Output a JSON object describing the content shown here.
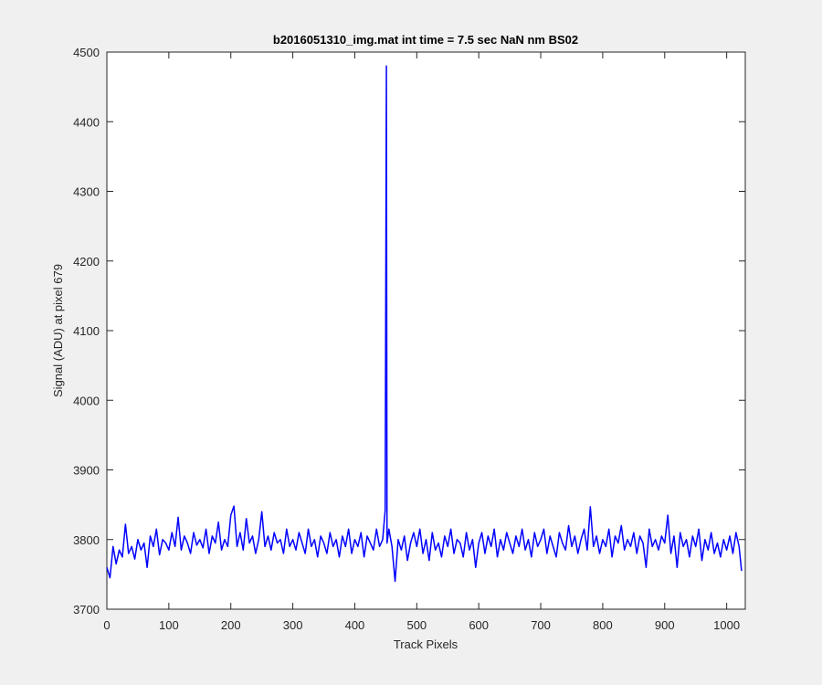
{
  "chart_data": {
    "type": "line",
    "title": "b2016051310_img.mat int time = 7.5 sec  NaN nm BS02",
    "xlabel": "Track Pixels",
    "ylabel": "Signal (ADU) at pixel 679",
    "xlim": [
      0,
      1030
    ],
    "xticks": [
      0,
      100,
      200,
      300,
      400,
      500,
      600,
      700,
      800,
      900,
      1000
    ],
    "ylim": [
      3700,
      4500
    ],
    "yticks": [
      3700,
      3800,
      3900,
      4000,
      4100,
      4200,
      4300,
      4400,
      4500
    ],
    "grid": false,
    "x": [
      0,
      5,
      10,
      15,
      20,
      25,
      30,
      35,
      40,
      45,
      50,
      55,
      60,
      65,
      70,
      75,
      80,
      85,
      90,
      95,
      100,
      105,
      110,
      115,
      120,
      125,
      130,
      135,
      140,
      145,
      150,
      155,
      160,
      165,
      170,
      175,
      180,
      185,
      190,
      195,
      200,
      205,
      210,
      215,
      220,
      225,
      230,
      235,
      240,
      245,
      250,
      255,
      260,
      265,
      270,
      275,
      280,
      285,
      290,
      295,
      300,
      305,
      310,
      315,
      320,
      325,
      330,
      335,
      340,
      345,
      350,
      355,
      360,
      365,
      370,
      375,
      380,
      385,
      390,
      395,
      400,
      405,
      410,
      415,
      420,
      425,
      430,
      435,
      440,
      445,
      449,
      451,
      452,
      455,
      460,
      465,
      470,
      475,
      480,
      485,
      490,
      495,
      500,
      505,
      510,
      515,
      520,
      525,
      530,
      535,
      540,
      545,
      550,
      555,
      560,
      565,
      570,
      575,
      580,
      585,
      590,
      595,
      600,
      605,
      610,
      615,
      620,
      625,
      630,
      635,
      640,
      645,
      650,
      655,
      660,
      665,
      670,
      675,
      680,
      685,
      690,
      695,
      700,
      705,
      710,
      715,
      720,
      725,
      730,
      735,
      740,
      745,
      750,
      755,
      760,
      765,
      770,
      775,
      780,
      785,
      790,
      795,
      800,
      805,
      810,
      815,
      820,
      825,
      830,
      835,
      840,
      845,
      850,
      855,
      860,
      865,
      870,
      875,
      880,
      885,
      890,
      895,
      900,
      905,
      910,
      915,
      920,
      925,
      930,
      935,
      940,
      945,
      950,
      955,
      960,
      965,
      970,
      975,
      980,
      985,
      990,
      995,
      1000,
      1005,
      1010,
      1015,
      1020,
      1024
    ],
    "series": [
      {
        "color": "#0000ff",
        "values": [
          3760,
          3745,
          3790,
          3765,
          3785,
          3775,
          3822,
          3780,
          3790,
          3772,
          3800,
          3785,
          3795,
          3760,
          3805,
          3790,
          3815,
          3778,
          3800,
          3795,
          3785,
          3810,
          3790,
          3832,
          3785,
          3805,
          3795,
          3780,
          3810,
          3792,
          3800,
          3788,
          3815,
          3780,
          3805,
          3795,
          3825,
          3785,
          3800,
          3790,
          3835,
          3848,
          3790,
          3810,
          3785,
          3830,
          3795,
          3805,
          3780,
          3800,
          3840,
          3790,
          3805,
          3785,
          3810,
          3795,
          3800,
          3780,
          3815,
          3790,
          3800,
          3785,
          3810,
          3795,
          3780,
          3815,
          3790,
          3800,
          3775,
          3805,
          3795,
          3780,
          3810,
          3790,
          3800,
          3775,
          3805,
          3790,
          3815,
          3780,
          3800,
          3790,
          3810,
          3775,
          3805,
          3795,
          3785,
          3815,
          3790,
          3800,
          3842,
          4480,
          3795,
          3815,
          3790,
          3740,
          3800,
          3785,
          3805,
          3770,
          3795,
          3810,
          3790,
          3815,
          3780,
          3800,
          3770,
          3810,
          3785,
          3795,
          3775,
          3805,
          3790,
          3815,
          3780,
          3800,
          3795,
          3775,
          3810,
          3785,
          3800,
          3760,
          3795,
          3810,
          3780,
          3805,
          3790,
          3815,
          3775,
          3800,
          3785,
          3810,
          3795,
          3780,
          3805,
          3790,
          3815,
          3785,
          3800,
          3775,
          3810,
          3790,
          3800,
          3815,
          3780,
          3805,
          3790,
          3775,
          3810,
          3795,
          3785,
          3820,
          3790,
          3805,
          3780,
          3800,
          3815,
          3785,
          3847,
          3790,
          3805,
          3780,
          3800,
          3790,
          3815,
          3775,
          3805,
          3795,
          3820,
          3785,
          3800,
          3790,
          3810,
          3780,
          3805,
          3795,
          3760,
          3815,
          3790,
          3800,
          3785,
          3805,
          3795,
          3835,
          3780,
          3805,
          3760,
          3810,
          3790,
          3800,
          3775,
          3805,
          3790,
          3815,
          3770,
          3800,
          3785,
          3810,
          3780,
          3795,
          3775,
          3800,
          3785,
          3805,
          3780,
          3810,
          3790,
          3755
        ]
      }
    ]
  }
}
